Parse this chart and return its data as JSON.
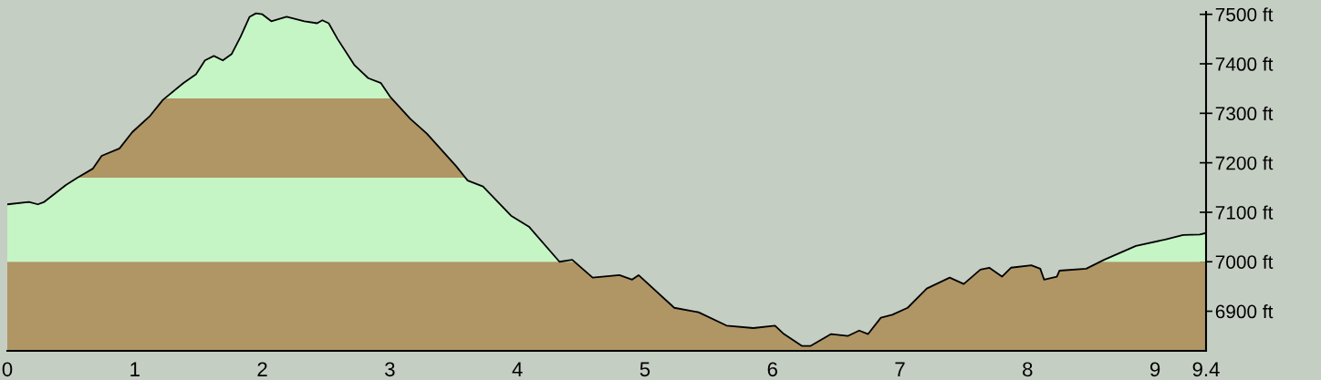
{
  "chart_data": {
    "type": "line",
    "x": [
      0,
      0.17,
      0.24,
      0.29,
      0.46,
      0.55,
      0.67,
      0.74,
      0.88,
      0.98,
      1.12,
      1.22,
      1.38,
      1.48,
      1.55,
      1.62,
      1.69,
      1.76,
      1.83,
      1.9,
      1.95,
      2.0,
      2.07,
      2.19,
      2.33,
      2.43,
      2.47,
      2.52,
      2.59,
      2.72,
      2.83,
      2.93,
      3.0,
      3.16,
      3.29,
      3.52,
      3.61,
      3.73,
      3.95,
      4.09,
      4.33,
      4.43,
      4.59,
      4.8,
      4.9,
      4.95,
      5.23,
      5.42,
      5.64,
      5.85,
      6.02,
      6.09,
      6.23,
      6.3,
      6.46,
      6.59,
      6.68,
      6.75,
      6.85,
      6.94,
      7.06,
      7.21,
      7.39,
      7.5,
      7.63,
      7.7,
      7.8,
      7.87,
      8.03,
      8.1,
      8.13,
      8.23,
      8.25,
      8.46,
      8.6,
      8.85,
      9.08,
      9.22,
      9.35,
      9.4
    ],
    "series": [
      {
        "color": "#000000",
        "values": [
          7116,
          7121,
          7116,
          7121,
          7155,
          7170,
          7188,
          7214,
          7229,
          7262,
          7295,
          7327,
          7361,
          7379,
          7407,
          7416,
          7407,
          7420,
          7455,
          7495,
          7502,
          7500,
          7486,
          7495,
          7486,
          7482,
          7488,
          7482,
          7450,
          7398,
          7371,
          7361,
          7334,
          7289,
          7259,
          7193,
          7164,
          7152,
          7093,
          7071,
          7000,
          7004,
          6968,
          6973,
          6964,
          6973,
          6907,
          6898,
          6871,
          6866,
          6871,
          6854,
          6830,
          6830,
          6854,
          6850,
          6861,
          6854,
          6887,
          6893,
          6907,
          6946,
          6968,
          6955,
          6984,
          6988,
          6970,
          6988,
          6993,
          6986,
          6964,
          6970,
          6982,
          6986,
          7004,
          7032,
          7045,
          7054,
          7055,
          7058
        ]
      }
    ],
    "xlim": [
      0,
      9.4
    ],
    "ylim": [
      6820,
      7505
    ],
    "xticks": [
      0,
      1,
      2,
      3,
      4,
      5,
      6,
      7,
      8,
      9,
      9.4
    ],
    "yticks": [
      {
        "value": 6900,
        "label": "6900 ft"
      },
      {
        "value": 7000,
        "label": "7000 ft"
      },
      {
        "value": 7100,
        "label": "7100 ft"
      },
      {
        "value": 7200,
        "label": "7200 ft"
      },
      {
        "value": 7300,
        "label": "7300 ft"
      },
      {
        "value": 7400,
        "label": "7400 ft"
      },
      {
        "value": 7500,
        "label": "7500 ft"
      }
    ],
    "bands": [
      {
        "axis": "y",
        "from": 6820,
        "to": 7000,
        "color": "#b09565"
      },
      {
        "axis": "y",
        "from": 7000,
        "to": 7170,
        "color": "#c5f5c5"
      },
      {
        "axis": "y",
        "from": 7170,
        "to": 7330,
        "color": "#b09565"
      },
      {
        "axis": "y",
        "from": 7330,
        "to": 7505,
        "color": "#c5f5c5"
      }
    ],
    "grid": false,
    "legend": false
  }
}
